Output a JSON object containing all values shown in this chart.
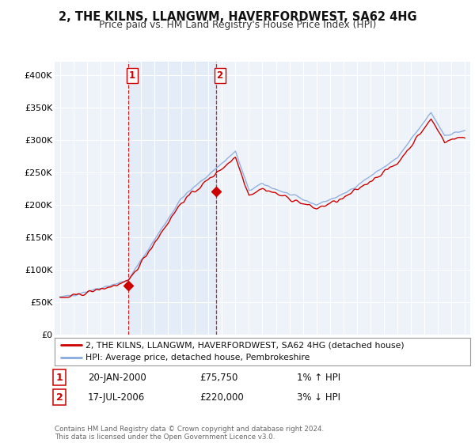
{
  "title": "2, THE KILNS, LLANGWM, HAVERFORDWEST, SA62 4HG",
  "subtitle": "Price paid vs. HM Land Registry's House Price Index (HPI)",
  "legend_line1": "2, THE KILNS, LLANGWM, HAVERFORDWEST, SA62 4HG (detached house)",
  "legend_line2": "HPI: Average price, detached house, Pembrokeshire",
  "transaction1_label": "1",
  "transaction1_date": "20-JAN-2000",
  "transaction1_price": "£75,750",
  "transaction1_hpi": "1% ↑ HPI",
  "transaction2_label": "2",
  "transaction2_date": "17-JUL-2006",
  "transaction2_price": "£220,000",
  "transaction2_hpi": "3% ↓ HPI",
  "footer": "Contains HM Land Registry data © Crown copyright and database right 2024.\nThis data is licensed under the Open Government Licence v3.0.",
  "ylim": [
    0,
    420000
  ],
  "yticks": [
    0,
    50000,
    100000,
    150000,
    200000,
    250000,
    300000,
    350000,
    400000
  ],
  "ytick_labels": [
    "£0",
    "£50K",
    "£100K",
    "£150K",
    "£200K",
    "£250K",
    "£300K",
    "£350K",
    "£400K"
  ],
  "background_color": "#ffffff",
  "plot_bg_color": "#eef3fa",
  "grid_color": "#ffffff",
  "line_color_red": "#cc0000",
  "line_color_blue": "#88aadd",
  "marker_color_red": "#cc0000",
  "vline_color": "#cc0000",
  "transaction1_x": 2000.05,
  "transaction1_y": 75750,
  "transaction2_x": 2006.54,
  "transaction2_y": 220000,
  "xlim_left": 1994.6,
  "xlim_right": 2025.4
}
